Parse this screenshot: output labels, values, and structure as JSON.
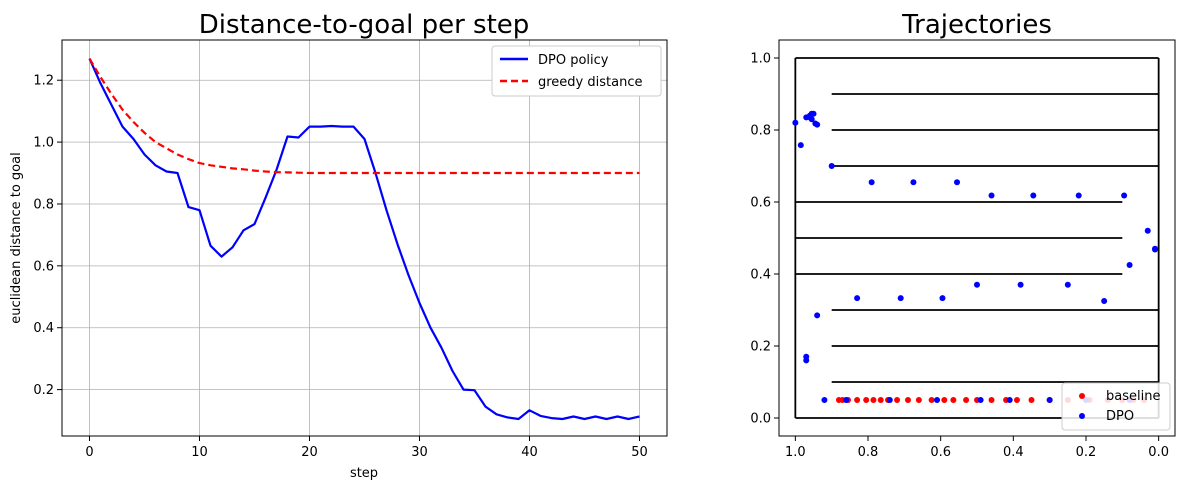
{
  "chart_data": [
    {
      "type": "line",
      "title": "Distance-to-goal per step",
      "xlabel": "step",
      "ylabel": "euclidean distance to goal",
      "xlim": [
        -2.5,
        52.5
      ],
      "ylim": [
        0.05,
        1.33
      ],
      "xticks": [
        0,
        10,
        20,
        30,
        40,
        50
      ],
      "xtick_labels": [
        "0",
        "10",
        "20",
        "30",
        "40",
        "50"
      ],
      "yticks": [
        0.2,
        0.4,
        0.6,
        0.8,
        1.0,
        1.2
      ],
      "ytick_labels": [
        "0.2",
        "0.4",
        "0.6",
        "0.8",
        "1.0",
        "1.2"
      ],
      "grid": true,
      "legend_position": "top-right",
      "series": [
        {
          "name": "DPO policy",
          "color": "#0000ff",
          "style": "solid",
          "x": [
            0,
            1,
            2,
            3,
            4,
            5,
            6,
            7,
            8,
            9,
            10,
            11,
            12,
            13,
            14,
            15,
            16,
            17,
            18,
            19,
            20,
            21,
            22,
            23,
            24,
            25,
            26,
            27,
            28,
            29,
            30,
            31,
            32,
            33,
            34,
            35,
            36,
            37,
            38,
            39,
            40,
            41,
            42,
            43,
            44,
            45,
            46,
            47,
            48,
            49,
            50
          ],
          "y": [
            1.27,
            1.19,
            1.12,
            1.05,
            1.01,
            0.96,
            0.925,
            0.905,
            0.9,
            0.79,
            0.78,
            0.665,
            0.63,
            0.66,
            0.715,
            0.735,
            0.82,
            0.91,
            1.018,
            1.015,
            1.05,
            1.05,
            1.052,
            1.05,
            1.05,
            1.01,
            0.9,
            0.78,
            0.67,
            0.57,
            0.48,
            0.4,
            0.335,
            0.26,
            0.2,
            0.198,
            0.145,
            0.12,
            0.11,
            0.105,
            0.133,
            0.115,
            0.108,
            0.105,
            0.113,
            0.105,
            0.113,
            0.105,
            0.113,
            0.105,
            0.113
          ]
        },
        {
          "name": "greedy distance",
          "color": "#ff0000",
          "style": "dashed",
          "x": [
            0,
            1,
            2,
            3,
            4,
            5,
            6,
            7,
            8,
            9,
            10,
            11,
            12,
            13,
            14,
            15,
            16,
            17,
            18,
            19,
            20,
            22,
            25,
            30,
            35,
            40,
            45,
            50
          ],
          "y": [
            1.27,
            1.21,
            1.155,
            1.105,
            1.065,
            1.03,
            1.0,
            0.98,
            0.96,
            0.945,
            0.932,
            0.925,
            0.92,
            0.915,
            0.912,
            0.908,
            0.905,
            0.903,
            0.902,
            0.901,
            0.9,
            0.9,
            0.9,
            0.9,
            0.9,
            0.9,
            0.9,
            0.9
          ]
        }
      ]
    },
    {
      "type": "scatter",
      "title": "Trajectories",
      "xlabel": "",
      "ylabel": "",
      "xlim": [
        1.045,
        -0.045
      ],
      "ylim": [
        -0.05,
        1.05
      ],
      "xticks": [
        1.0,
        0.8,
        0.6,
        0.4,
        0.2,
        0.0
      ],
      "xtick_labels": [
        "1.0",
        "0.8",
        "0.6",
        "0.4",
        "0.2",
        "0.0"
      ],
      "yticks": [
        0.0,
        0.2,
        0.4,
        0.6,
        0.8,
        1.0
      ],
      "ytick_labels": [
        "0.0",
        "0.2",
        "0.4",
        "0.6",
        "0.8",
        "1.0"
      ],
      "grid": false,
      "legend_position": "bottom-right",
      "walls": [
        {
          "x1": 1.0,
          "y1": 0.0,
          "x2": 1.0,
          "y2": 1.0
        },
        {
          "x1": 1.0,
          "y1": 1.0,
          "x2": 0.0,
          "y2": 1.0
        },
        {
          "x1": 0.0,
          "y1": 1.0,
          "x2": 0.0,
          "y2": 0.0
        },
        {
          "x1": 0.0,
          "y1": 0.0,
          "x2": 1.0,
          "y2": 0.0
        },
        {
          "x1": 0.9,
          "y1": 0.9,
          "x2": 0.0,
          "y2": 0.9
        },
        {
          "x1": 0.9,
          "y1": 0.8,
          "x2": 0.0,
          "y2": 0.8
        },
        {
          "x1": 0.9,
          "y1": 0.7,
          "x2": 0.0,
          "y2": 0.7
        },
        {
          "x1": 1.0,
          "y1": 0.6,
          "x2": 0.1,
          "y2": 0.6
        },
        {
          "x1": 1.0,
          "y1": 0.5,
          "x2": 0.1,
          "y2": 0.5
        },
        {
          "x1": 1.0,
          "y1": 0.4,
          "x2": 0.1,
          "y2": 0.4
        },
        {
          "x1": 0.9,
          "y1": 0.3,
          "x2": 0.0,
          "y2": 0.3
        },
        {
          "x1": 0.9,
          "y1": 0.2,
          "x2": 0.0,
          "y2": 0.2
        },
        {
          "x1": 0.9,
          "y1": 0.1,
          "x2": 0.0,
          "y2": 0.1
        }
      ],
      "series": [
        {
          "name": "baseline",
          "color": "#ff0000",
          "x": [
            0.88,
            0.87,
            0.855,
            0.83,
            0.805,
            0.785,
            0.765,
            0.745,
            0.72,
            0.69,
            0.66,
            0.625,
            0.59,
            0.565,
            0.53,
            0.5,
            0.46,
            0.42,
            0.39,
            0.35,
            0.3,
            0.25,
            0.19,
            0.14,
            0.1,
            0.07,
            0.04
          ],
          "y": [
            0.05,
            0.05,
            0.05,
            0.05,
            0.05,
            0.05,
            0.05,
            0.05,
            0.05,
            0.05,
            0.05,
            0.05,
            0.05,
            0.05,
            0.05,
            0.05,
            0.05,
            0.05,
            0.05,
            0.05,
            0.05,
            0.05,
            0.05,
            0.05,
            0.05,
            0.05,
            0.05
          ]
        },
        {
          "name": "DPO",
          "color": "#0000ff",
          "x": [
            1.0,
            0.985,
            0.97,
            0.96,
            0.955,
            0.95,
            0.96,
            0.955,
            0.945,
            0.94,
            0.9,
            0.79,
            0.675,
            0.555,
            0.46,
            0.345,
            0.22,
            0.095,
            0.03,
            0.01,
            0.01,
            0.08,
            0.15,
            0.25,
            0.38,
            0.5,
            0.595,
            0.71,
            0.83,
            0.94,
            0.97,
            0.97,
            0.92,
            0.86,
            0.74,
            0.61,
            0.49,
            0.41,
            0.3,
            0.2,
            0.08
          ],
          "y": [
            0.82,
            0.758,
            0.835,
            0.84,
            0.845,
            0.845,
            0.835,
            0.83,
            0.818,
            0.815,
            0.7,
            0.655,
            0.655,
            0.655,
            0.618,
            0.618,
            0.618,
            0.618,
            0.52,
            0.47,
            0.468,
            0.425,
            0.325,
            0.37,
            0.37,
            0.37,
            0.333,
            0.333,
            0.333,
            0.285,
            0.17,
            0.16,
            0.05,
            0.05,
            0.05,
            0.05,
            0.05,
            0.05,
            0.05,
            0.05,
            0.05
          ]
        }
      ]
    }
  ]
}
